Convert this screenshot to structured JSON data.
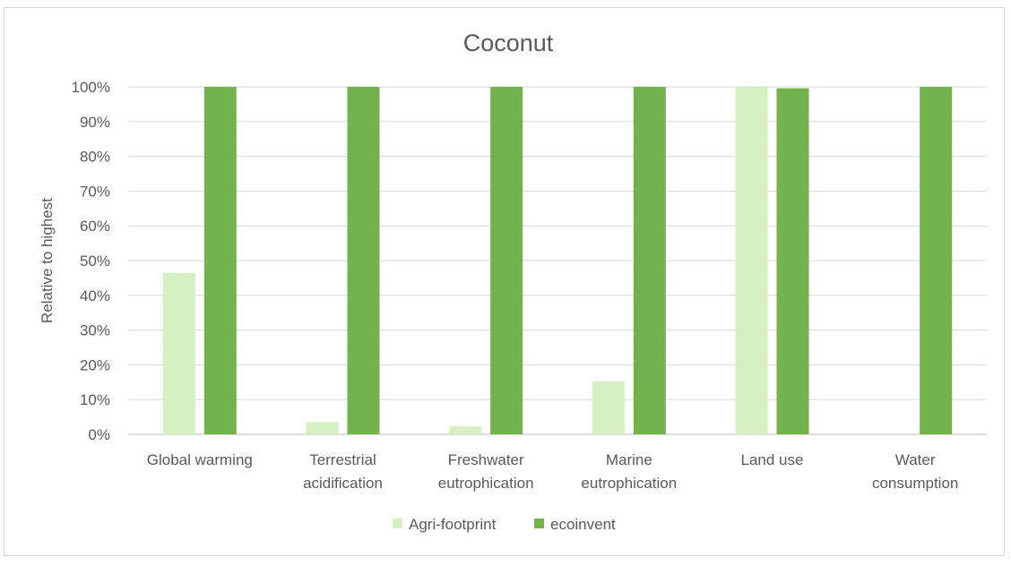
{
  "chart_data": {
    "type": "bar",
    "title": "Coconut",
    "xlabel": "",
    "ylabel": "Relative to highest",
    "ylim": [
      0,
      100
    ],
    "yticks": [
      0,
      10,
      20,
      30,
      40,
      50,
      60,
      70,
      80,
      90,
      100
    ],
    "ytick_suffix": "%",
    "grid": true,
    "legend_position": "bottom",
    "categories": [
      [
        "Global warming"
      ],
      [
        "Terrestrial",
        "acidification"
      ],
      [
        "Freshwater",
        "eutrophication"
      ],
      [
        "Marine",
        "eutrophication"
      ],
      [
        "Land use"
      ],
      [
        "Water",
        "consumption"
      ]
    ],
    "series": [
      {
        "name": "Agri-footprint",
        "color": "#d5f0c3",
        "values": [
          46.5,
          3.5,
          2.3,
          15.3,
          100,
          0
        ]
      },
      {
        "name": "ecoinvent",
        "color": "#72b34e",
        "values": [
          100,
          100,
          100,
          100,
          99.6,
          100
        ]
      }
    ]
  }
}
